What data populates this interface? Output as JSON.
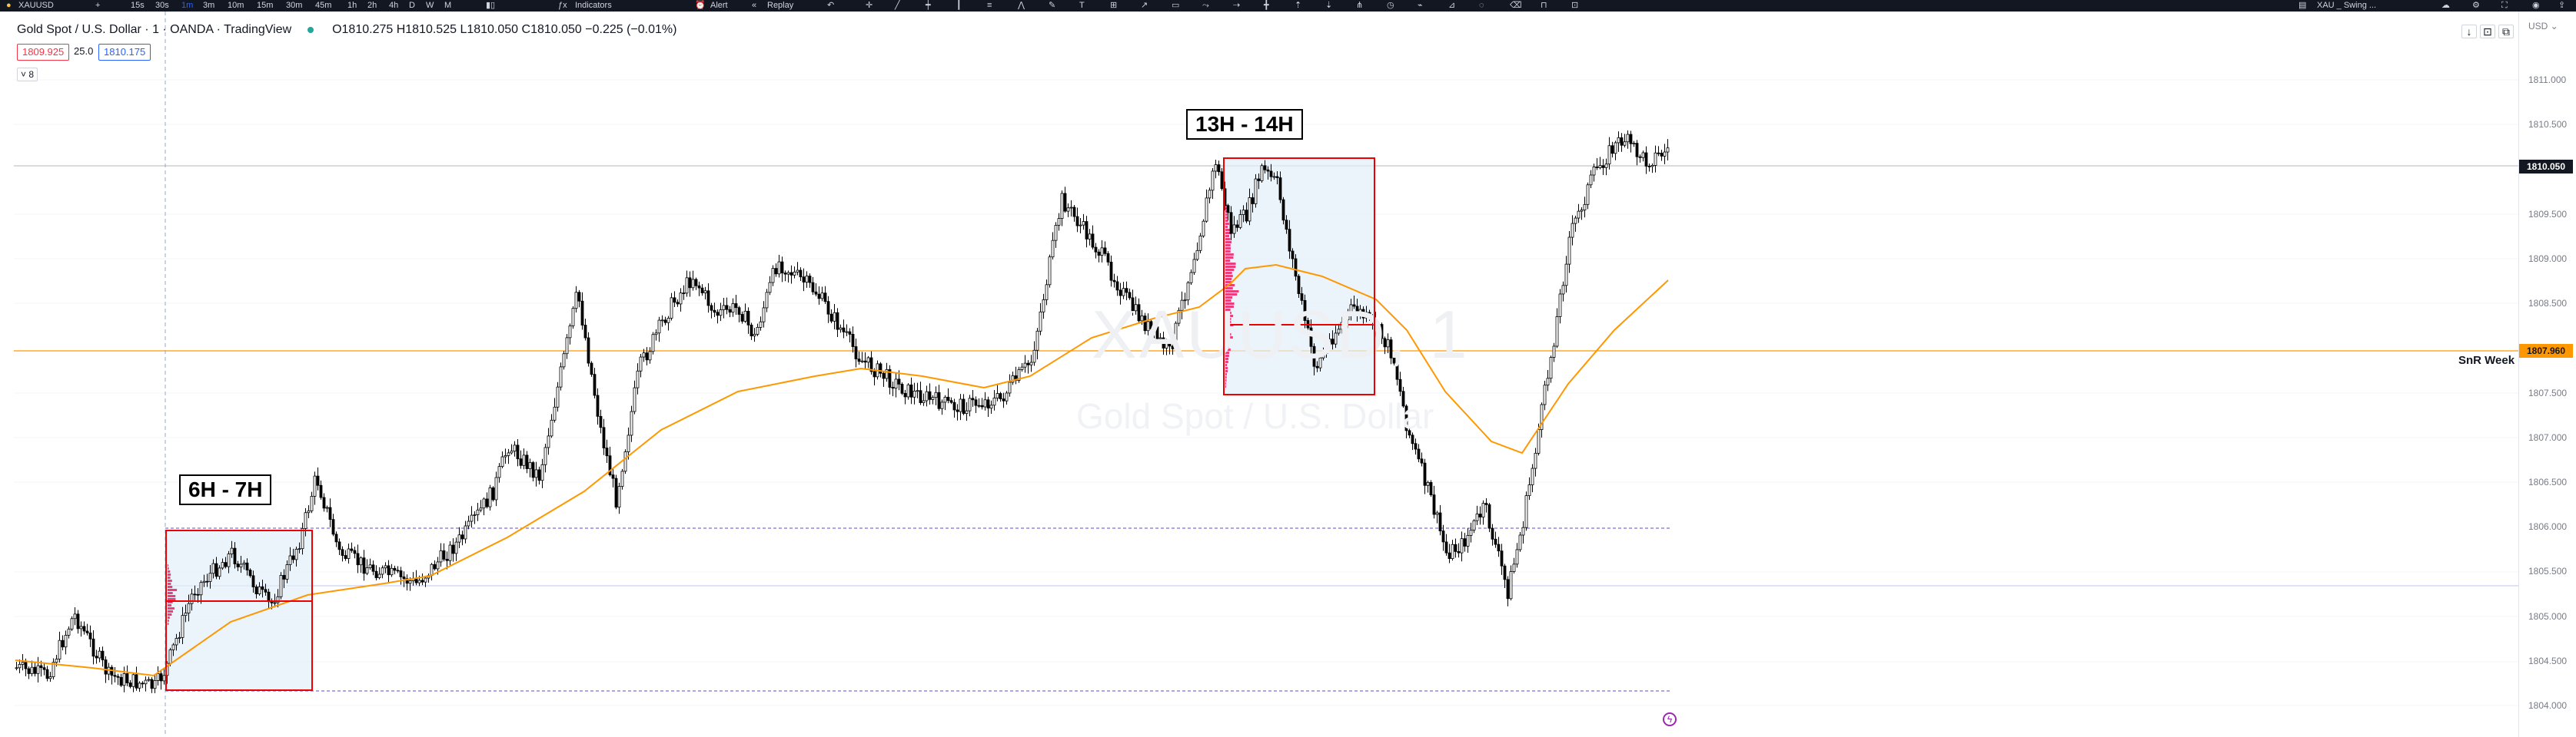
{
  "toolbar": {
    "symbol": "XAUUSD",
    "add": "+",
    "intervals": [
      "15s",
      "30s",
      "1m",
      "3m",
      "10m",
      "15m",
      "30m",
      "45m",
      "1h",
      "2h",
      "4h",
      "D",
      "W",
      "M"
    ],
    "indicators": "Indicators",
    "alert": "Alert",
    "replay": "Replay",
    "layout": "XAU _ Swing ..."
  },
  "legend": {
    "title": "Gold Spot / U.S. Dollar · 1 · OANDA · TradingView",
    "ohlc": "O1810.275  H1810.525  L1810.050  C1810.050  −0.225 (−0.01%)",
    "bid": "1809.925",
    "spread": "25.0",
    "ask": "1810.175",
    "collapse": "˅ 8"
  },
  "watermark": {
    "symbol": "XAUUSD, 1",
    "name": "Gold Spot / U.S. Dollar"
  },
  "price_scale": {
    "top_label": "USD ⌄",
    "ticks": [
      "1811.000",
      "1810.500",
      "1809.500",
      "1809.000",
      "1808.500",
      "1807.500",
      "1807.000",
      "1806.500",
      "1806.000",
      "1805.500",
      "1805.000",
      "1804.500",
      "1804.000"
    ],
    "current_price": "1810.050",
    "snr_price": "1807.960"
  },
  "annotations": {
    "session_1": "6H - 7H",
    "session_2": "13H - 14H",
    "snr_label": "SnR Week"
  },
  "colors": {
    "ma_line": "#ff9800",
    "session_box": "#ef0000",
    "session_fill": "#e3eefa",
    "volume_profile": "#e91e63",
    "snr_line": "#ff9800",
    "bull_candle": "#ffffff",
    "bear_candle": "#000000",
    "dashed_level": "#7b6fd6"
  }
}
